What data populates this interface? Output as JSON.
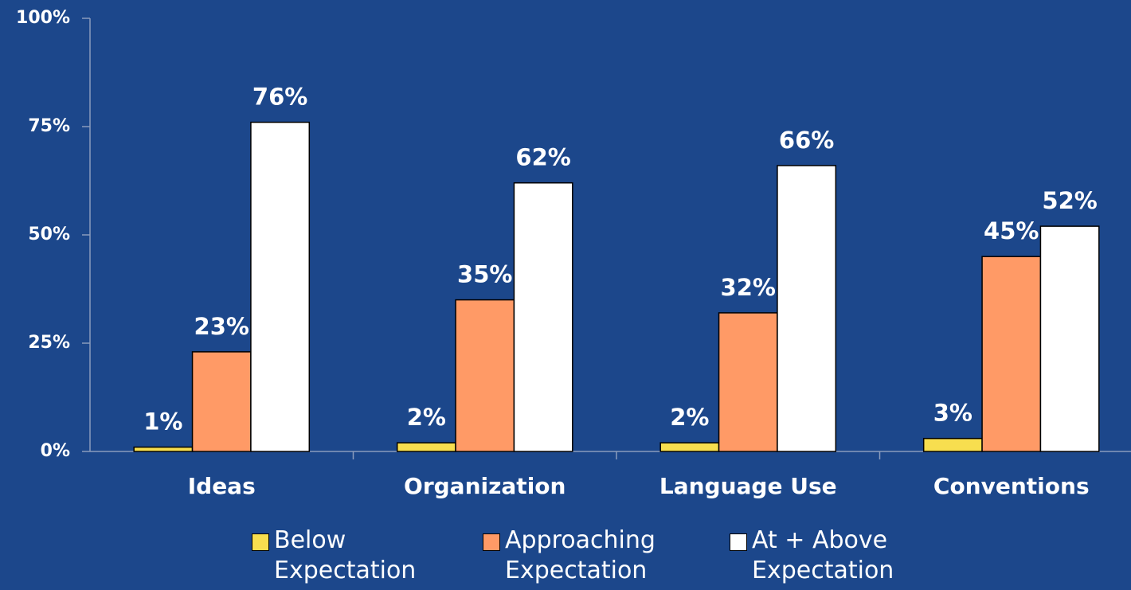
{
  "chart_data": {
    "type": "bar",
    "categories": [
      "Ideas",
      "Organization",
      "Language Use",
      "Conventions"
    ],
    "series": [
      {
        "name": "Below Expectation",
        "color": "#f7de4f",
        "values": [
          1,
          2,
          2,
          3
        ],
        "value_labels": [
          "1%",
          "2%",
          "2%",
          "3%"
        ]
      },
      {
        "name": "Approaching Expectation",
        "color": "#ff9a66",
        "values": [
          23,
          35,
          32,
          45
        ],
        "value_labels": [
          "23%",
          "35%",
          "32%",
          "45%"
        ]
      },
      {
        "name": "At + Above Expectation",
        "color": "#ffffff",
        "values": [
          76,
          62,
          66,
          52
        ],
        "value_labels": [
          "76%",
          "62%",
          "66%",
          "52%"
        ]
      }
    ],
    "ylim": [
      0,
      100
    ],
    "yticks": [
      {
        "value": 0,
        "label": "0%"
      },
      {
        "value": 25,
        "label": "25%"
      },
      {
        "value": 50,
        "label": "50%"
      },
      {
        "value": 75,
        "label": "75%"
      },
      {
        "value": 100,
        "label": "100%"
      }
    ],
    "legend": "bottom"
  }
}
